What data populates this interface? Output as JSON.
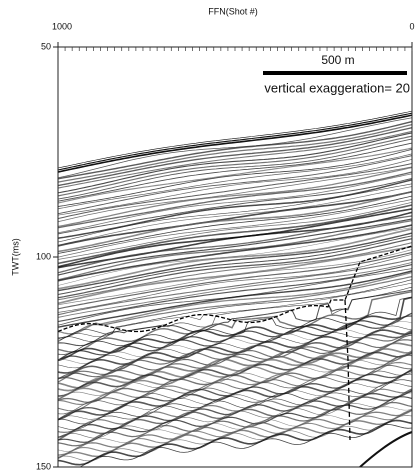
{
  "chart_data": {
    "type": "seismic-section",
    "x_label": "FFN(Shot #)",
    "y_label": "TWT(ms)",
    "xlim": [
      1000,
      0
    ],
    "xticks": [
      1000,
      0
    ],
    "ylim": [
      50,
      150
    ],
    "yticks": [
      50,
      100,
      150
    ],
    "y_inverted": true,
    "annotations": [
      "500 m",
      "vertical exaggeration= 20"
    ]
  }
}
